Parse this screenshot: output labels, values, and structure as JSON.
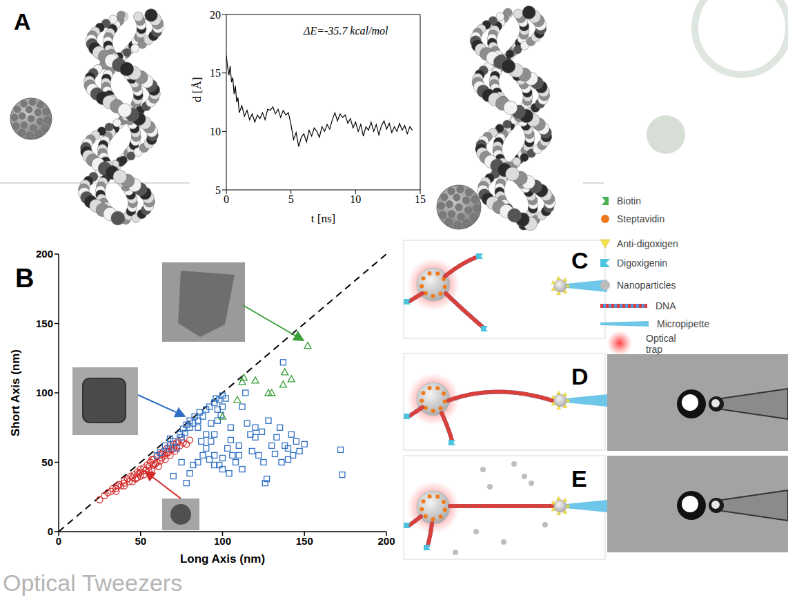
{
  "panel_labels": [
    "A",
    "B",
    "C",
    "D",
    "E"
  ],
  "footer": "Optical Tweezers",
  "legend_items": [
    "Biotin",
    "Steptavidin",
    "Anti-digoxigen",
    "Digoxigenin",
    "Nanoparticles",
    "DNA",
    "Micropipette",
    "Optical trap"
  ],
  "chart_data": [
    {
      "type": "line",
      "annotation": "ΔE=-35.7 kcal/mol",
      "x_label": "t [ns]",
      "y_label": "d [Å]",
      "color": "#000000",
      "xlim": [
        0,
        15
      ],
      "xticks": [
        0,
        5,
        10,
        15
      ],
      "ylim": [
        5,
        20
      ],
      "yticks": [
        5,
        10,
        15,
        20
      ],
      "x": [
        0,
        0.1,
        0.2,
        0.3,
        0.4,
        0.5,
        0.6,
        0.7,
        0.8,
        0.9,
        1.0,
        1.2,
        1.4,
        1.6,
        1.8,
        2.0,
        2.2,
        2.4,
        2.6,
        2.8,
        3.0,
        3.2,
        3.4,
        3.6,
        3.8,
        4.0,
        4.2,
        4.4,
        4.6,
        4.8,
        5.0,
        5.2,
        5.4,
        5.6,
        5.8,
        6.0,
        6.2,
        6.4,
        6.6,
        6.8,
        7.0,
        7.2,
        7.4,
        7.6,
        7.8,
        8.0,
        8.2,
        8.4,
        8.6,
        8.8,
        9.0,
        9.2,
        9.4,
        9.6,
        9.8,
        10.0,
        10.2,
        10.4,
        10.6,
        10.8,
        11.0,
        11.2,
        11.4,
        11.6,
        11.8,
        12.0,
        12.2,
        12.4,
        12.6,
        12.8,
        13.0,
        13.2,
        13.4,
        13.6,
        13.8,
        14.0,
        14.2,
        14.4
      ],
      "values": [
        16.5,
        15.5,
        14.8,
        15.6,
        14.2,
        14.6,
        13.2,
        13.9,
        12.5,
        12.9,
        11.6,
        12.2,
        11.3,
        11.8,
        11.0,
        11.5,
        10.8,
        11.4,
        11.1,
        11.6,
        11.0,
        11.9,
        11.8,
        12.1,
        11.5,
        11.9,
        11.2,
        11.8,
        11.4,
        11.6,
        10.6,
        9.3,
        9.9,
        8.7,
        9.5,
        9.8,
        9.1,
        10.1,
        9.6,
        10.3,
        10.0,
        9.5,
        10.4,
        10.0,
        10.6,
        10.2,
        11.0,
        11.6,
        10.9,
        11.5,
        11.2,
        11.4,
        10.7,
        11.1,
        10.3,
        10.8,
        10.0,
        10.6,
        9.6,
        10.4,
        10.1,
        10.8,
        10.0,
        10.6,
        9.7,
        10.5,
        10.9,
        10.2,
        10.7,
        9.9,
        10.4,
        10.0,
        10.7,
        10.1,
        10.5,
        9.8,
        10.4,
        10.1
      ]
    },
    {
      "type": "scatter",
      "x_label": "Long Axis (nm)",
      "y_label": "Short Axis (nm)",
      "xlim": [
        0,
        200
      ],
      "xticks": [
        0,
        50,
        100,
        150,
        200
      ],
      "ylim": [
        0,
        200
      ],
      "yticks": [
        0,
        50,
        100,
        150,
        200
      ],
      "series": [
        {
          "color": "#d42a2a",
          "marker": "circle",
          "x": [
            25,
            28,
            30,
            32,
            33,
            35,
            36,
            37,
            38,
            40,
            40,
            42,
            43,
            44,
            45,
            46,
            47,
            48,
            49,
            50,
            50,
            52,
            53,
            54,
            55,
            56,
            57,
            58,
            59,
            60,
            60,
            61,
            62,
            63,
            64,
            65,
            66,
            67,
            68,
            69,
            70,
            71,
            72,
            73,
            74,
            75,
            76,
            78,
            80,
            45,
            50,
            55,
            58,
            62,
            65,
            68,
            70,
            52,
            40,
            35,
            63,
            66,
            72,
            57,
            48
          ],
          "values": [
            23,
            26,
            28,
            29,
            31,
            31,
            33,
            34,
            33,
            37,
            35,
            38,
            36,
            40,
            39,
            41,
            38,
            43,
            42,
            45,
            40,
            46,
            44,
            48,
            47,
            50,
            45,
            52,
            49,
            54,
            50,
            47,
            56,
            53,
            58,
            55,
            60,
            57,
            62,
            59,
            63,
            58,
            61,
            65,
            62,
            66,
            64,
            63,
            66,
            36,
            43,
            44,
            48,
            51,
            52,
            55,
            60,
            41,
            33,
            29,
            56,
            57,
            64,
            52,
            39
          ]
        },
        {
          "color": "#2f6fc4",
          "marker": "square",
          "x": [
            60,
            62,
            65,
            67,
            68,
            70,
            72,
            74,
            75,
            76,
            77,
            78,
            80,
            80,
            82,
            83,
            85,
            85,
            86,
            88,
            90,
            92,
            95,
            96,
            98,
            100,
            100,
            99,
            97,
            95,
            93,
            90,
            88,
            85,
            82,
            80,
            78,
            92,
            95,
            98,
            100,
            103,
            105,
            106,
            108,
            110,
            112,
            115,
            117,
            118,
            120,
            122,
            124,
            125,
            127,
            128,
            130,
            132,
            133,
            135,
            136,
            137,
            140,
            142,
            143,
            145,
            147,
            150,
            172,
            173,
            100,
            104,
            110,
            114,
            120,
            126,
            138,
            140,
            95,
            90,
            87,
            105,
            112,
            70,
            75,
            102,
            97,
            93
          ],
          "values": [
            55,
            57,
            62,
            60,
            67,
            65,
            60,
            70,
            68,
            74,
            71,
            77,
            75,
            80,
            78,
            83,
            75,
            80,
            86,
            83,
            88,
            90,
            93,
            96,
            95,
            98,
            90,
            84,
            80,
            70,
            65,
            60,
            55,
            50,
            48,
            42,
            35,
            52,
            55,
            48,
            53,
            60,
            66,
            55,
            50,
            62,
            45,
            78,
            70,
            58,
            68,
            55,
            72,
            50,
            38,
            80,
            62,
            56,
            68,
            75,
            50,
            122,
            60,
            70,
            55,
            65,
            58,
            63,
            59,
            41,
            45,
            42,
            55,
            100,
            75,
            35,
            62,
            52,
            48,
            70,
            65,
            75,
            90,
            40,
            50,
            96,
            88,
            78
          ]
        },
        {
          "color": "#3a9e3a",
          "marker": "triangle",
          "x": [
            152,
            138,
            137,
            130,
            120,
            113,
            112,
            109,
            100,
            128,
            142
          ],
          "values": [
            134,
            115,
            106,
            100,
            109,
            111,
            108,
            95,
            83,
            100,
            110
          ]
        }
      ]
    }
  ]
}
